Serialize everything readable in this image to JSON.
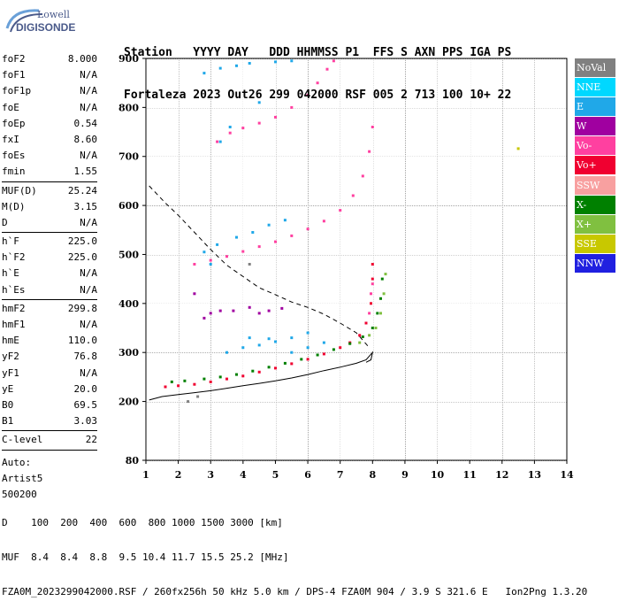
{
  "logo": {
    "line1": "Lowell",
    "line2": "DIGISONDE"
  },
  "header": {
    "line1": "Station   YYYY DAY   DDD HHMMSS P1  FFS S AXN PPS IGA PS",
    "line2": "Fortaleza 2023 Out26 299 042000 RSF 005 2 713 100 10+ 22"
  },
  "params": [
    [
      {
        "name": "foF2",
        "value": "8.000"
      },
      {
        "name": "foF1",
        "value": "N/A"
      },
      {
        "name": "foF1p",
        "value": "N/A"
      },
      {
        "name": "foE",
        "value": "N/A"
      },
      {
        "name": "foEp",
        "value": "0.54"
      },
      {
        "name": "fxI",
        "value": "8.60"
      },
      {
        "name": "foEs",
        "value": "N/A"
      },
      {
        "name": "fmin",
        "value": "1.55"
      }
    ],
    [
      {
        "name": "MUF(D)",
        "value": "25.24"
      },
      {
        "name": "M(D)",
        "value": "3.15"
      },
      {
        "name": "D",
        "value": "N/A"
      }
    ],
    [
      {
        "name": "h`F",
        "value": "225.0"
      },
      {
        "name": "h`F2",
        "value": "225.0"
      },
      {
        "name": "h`E",
        "value": "N/A"
      },
      {
        "name": "h`Es",
        "value": "N/A"
      }
    ],
    [
      {
        "name": "hmF2",
        "value": "299.8"
      },
      {
        "name": "hmF1",
        "value": "N/A"
      },
      {
        "name": "hmE",
        "value": "110.0"
      },
      {
        "name": "yF2",
        "value": "76.8"
      },
      {
        "name": "yF1",
        "value": "N/A"
      },
      {
        "name": "yE",
        "value": "20.0"
      },
      {
        "name": "B0",
        "value": "69.5"
      },
      {
        "name": "B1",
        "value": "3.03"
      }
    ],
    [
      {
        "name": "C-level",
        "value": "22"
      }
    ]
  ],
  "auto": [
    "Auto:",
    "Artist5",
    "500200"
  ],
  "legend": [
    {
      "label": "NoVal",
      "color": "#808080"
    },
    {
      "label": "NNE",
      "color": "#00d8ff"
    },
    {
      "label": "E",
      "color": "#20a8e8"
    },
    {
      "label": "W",
      "color": "#a000a0"
    },
    {
      "label": "Vo-",
      "color": "#ff40a0"
    },
    {
      "label": "Vo+",
      "color": "#f00030"
    },
    {
      "label": "SSW",
      "color": "#f8a0a0"
    },
    {
      "label": "X-",
      "color": "#008000"
    },
    {
      "label": "X+",
      "color": "#80c040"
    },
    {
      "label": "SSE",
      "color": "#c8c800"
    },
    {
      "label": "NNW",
      "color": "#2020e0"
    }
  ],
  "footer": {
    "line1": "D    100  200  400  600  800 1000 1500 3000 [km]",
    "line2": "MUF  8.4  8.4  8.8  9.5 10.4 11.7 15.5 25.2 [MHz]",
    "line3": "FZA0M_2023299042000.RSF / 260fx256h 50 kHz 5.0 km / DPS-4 FZA0M 904 / 3.9 S 321.6 E   Ion2Png 1.3.20"
  },
  "chart_data": {
    "type": "scatter",
    "title": "",
    "xlabel": "",
    "ylabel": "",
    "xlim": [
      1,
      14
    ],
    "ylim": [
      80,
      900
    ],
    "xticks": [
      "1",
      "2",
      "3",
      "4",
      "5",
      "6",
      "7",
      "8",
      "9",
      "10",
      "11",
      "12",
      "13",
      "14"
    ],
    "yticks": [
      {
        "v": 80,
        "label": "80"
      },
      {
        "v": 200,
        "label": "200"
      },
      {
        "v": 300,
        "label": "300"
      },
      {
        "v": 400,
        "label": "400"
      },
      {
        "v": 500,
        "label": "500"
      },
      {
        "v": 600,
        "label": "600"
      },
      {
        "v": 700,
        "label": "700"
      },
      {
        "v": 800,
        "label": "800"
      },
      {
        "v": 900,
        "label": "900"
      }
    ],
    "grid": true,
    "series": [
      {
        "name": "Vo+",
        "color": "#f00030",
        "points": [
          [
            1.6,
            230
          ],
          [
            2.0,
            232
          ],
          [
            2.5,
            235
          ],
          [
            3.0,
            240
          ],
          [
            3.5,
            246
          ],
          [
            4.0,
            252
          ],
          [
            4.5,
            260
          ],
          [
            5.0,
            268
          ],
          [
            5.5,
            277
          ],
          [
            6.0,
            286
          ],
          [
            6.5,
            297
          ],
          [
            7.0,
            310
          ],
          [
            7.3,
            320
          ],
          [
            7.6,
            335
          ],
          [
            7.8,
            360
          ],
          [
            7.95,
            400
          ],
          [
            8.0,
            450
          ],
          [
            8.0,
            480
          ]
        ]
      },
      {
        "name": "X-",
        "color": "#008000",
        "points": [
          [
            1.8,
            240
          ],
          [
            2.2,
            242
          ],
          [
            2.8,
            246
          ],
          [
            3.3,
            250
          ],
          [
            3.8,
            255
          ],
          [
            4.3,
            262
          ],
          [
            4.8,
            270
          ],
          [
            5.3,
            278
          ],
          [
            5.8,
            286
          ],
          [
            6.3,
            295
          ],
          [
            6.8,
            306
          ],
          [
            7.3,
            318
          ],
          [
            7.7,
            332
          ],
          [
            8.0,
            350
          ],
          [
            8.15,
            380
          ],
          [
            8.25,
            410
          ],
          [
            8.3,
            450
          ]
        ]
      },
      {
        "name": "X+",
        "color": "#80c040",
        "points": [
          [
            7.6,
            320
          ],
          [
            7.9,
            335
          ],
          [
            8.1,
            350
          ],
          [
            8.25,
            380
          ],
          [
            8.35,
            420
          ],
          [
            8.4,
            460
          ]
        ]
      },
      {
        "name": "E",
        "color": "#20a8e8",
        "points": [
          [
            3.5,
            300
          ],
          [
            4.0,
            310
          ],
          [
            4.5,
            315
          ],
          [
            5.0,
            322
          ],
          [
            5.5,
            330
          ],
          [
            6.0,
            340
          ],
          [
            5.5,
            300
          ],
          [
            6.0,
            310
          ],
          [
            6.5,
            320
          ],
          [
            4.2,
            330
          ],
          [
            4.8,
            328
          ],
          [
            2.8,
            505
          ],
          [
            3.2,
            520
          ],
          [
            3.8,
            535
          ],
          [
            4.3,
            545
          ],
          [
            4.8,
            560
          ],
          [
            5.3,
            570
          ],
          [
            3.0,
            480
          ],
          [
            2.8,
            870
          ],
          [
            3.3,
            880
          ],
          [
            3.8,
            885
          ],
          [
            4.2,
            890
          ],
          [
            5.0,
            893
          ],
          [
            5.5,
            895
          ],
          [
            3.3,
            730
          ],
          [
            3.6,
            760
          ],
          [
            4.5,
            810
          ]
        ]
      },
      {
        "name": "W",
        "color": "#a000a0",
        "points": [
          [
            2.8,
            370
          ],
          [
            3.0,
            380
          ],
          [
            3.3,
            385
          ],
          [
            4.5,
            380
          ],
          [
            4.8,
            385
          ],
          [
            5.2,
            390
          ],
          [
            3.7,
            385
          ],
          [
            4.2,
            392
          ],
          [
            2.5,
            420
          ]
        ]
      },
      {
        "name": "Vo-",
        "color": "#ff40a0",
        "points": [
          [
            7.9,
            380
          ],
          [
            7.95,
            420
          ],
          [
            8.0,
            440
          ],
          [
            2.5,
            480
          ],
          [
            3.0,
            488
          ],
          [
            3.5,
            496
          ],
          [
            4.0,
            506
          ],
          [
            4.5,
            516
          ],
          [
            5.0,
            526
          ],
          [
            5.5,
            538
          ],
          [
            6.0,
            552
          ],
          [
            6.5,
            568
          ],
          [
            7.0,
            590
          ],
          [
            7.4,
            620
          ],
          [
            7.7,
            660
          ],
          [
            7.9,
            710
          ],
          [
            8.0,
            760
          ],
          [
            3.2,
            730
          ],
          [
            3.6,
            748
          ],
          [
            4.0,
            758
          ],
          [
            4.5,
            768
          ],
          [
            5.0,
            780
          ],
          [
            5.5,
            800
          ],
          [
            6.0,
            825
          ],
          [
            6.3,
            850
          ],
          [
            6.6,
            878
          ],
          [
            6.8,
            895
          ]
        ]
      },
      {
        "name": "NoVal",
        "color": "#808080",
        "points": [
          [
            2.3,
            200
          ],
          [
            2.6,
            210
          ],
          [
            4.2,
            480
          ]
        ]
      },
      {
        "name": "SSE",
        "color": "#c8c800",
        "points": [
          [
            12.5,
            716
          ]
        ]
      }
    ],
    "curves": [
      {
        "name": "profile",
        "style": "solid",
        "points": [
          [
            1.1,
            203
          ],
          [
            1.5,
            210
          ],
          [
            2.0,
            214
          ],
          [
            2.5,
            218
          ],
          [
            3.0,
            222
          ],
          [
            3.5,
            227
          ],
          [
            4.0,
            232
          ],
          [
            4.5,
            237
          ],
          [
            5.0,
            242
          ],
          [
            5.5,
            248
          ],
          [
            6.0,
            255
          ],
          [
            6.5,
            263
          ],
          [
            7.0,
            270
          ],
          [
            7.5,
            278
          ],
          [
            7.8,
            285
          ],
          [
            8.0,
            300
          ],
          [
            7.95,
            285
          ],
          [
            7.8,
            280
          ]
        ]
      },
      {
        "name": "muf",
        "style": "dashed",
        "points": [
          [
            1.1,
            640
          ],
          [
            1.6,
            605
          ],
          [
            2.0,
            580
          ],
          [
            2.5,
            545
          ],
          [
            3.0,
            510
          ],
          [
            3.5,
            478
          ],
          [
            4.0,
            455
          ],
          [
            4.5,
            432
          ],
          [
            5.0,
            418
          ],
          [
            5.5,
            403
          ],
          [
            6.0,
            392
          ],
          [
            6.5,
            378
          ],
          [
            7.0,
            360
          ],
          [
            7.5,
            340
          ],
          [
            7.9,
            310
          ]
        ]
      }
    ]
  }
}
